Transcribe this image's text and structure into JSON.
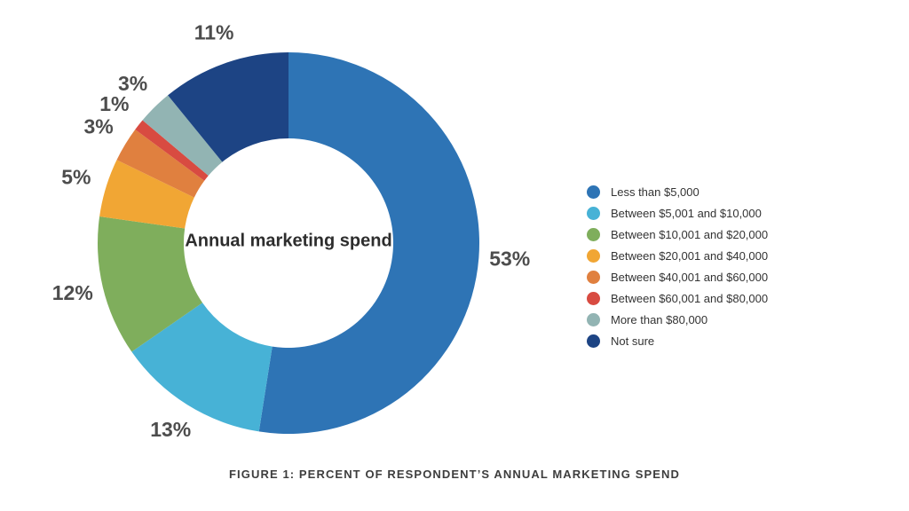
{
  "chart_data": {
    "type": "pie",
    "donut": true,
    "center_label": "Annual marketing spend",
    "caption": "FIGURE 1: PERCENT OF RESPONDENT’S ANNUAL MARKETING SPEND",
    "legend_position": "right",
    "categories": [
      "Less than $5,000",
      "Between $5,001 and $10,000",
      "Between $10,001 and $20,000",
      "Between $20,001 and $40,000",
      "Between $40,001 and $60,000",
      "Between $60,001 and $80,000",
      "More than $80,000",
      "Not sure"
    ],
    "values": [
      53,
      13,
      12,
      5,
      3,
      1,
      3,
      11
    ],
    "slices": [
      {
        "label": "Less than $5,000",
        "value": 53,
        "pct_label": "53%",
        "color": "#2e74b5"
      },
      {
        "label": "Between $5,001 and $10,000",
        "value": 13,
        "pct_label": "13%",
        "color": "#47b2d6"
      },
      {
        "label": "Between $10,001 and $20,000",
        "value": 12,
        "pct_label": "12%",
        "color": "#7fae5c"
      },
      {
        "label": "Between $20,001 and $40,000",
        "value": 5,
        "pct_label": "5%",
        "color": "#f1a634"
      },
      {
        "label": "Between $40,001 and $60,000",
        "value": 3,
        "pct_label": "3%",
        "color": "#e0803f"
      },
      {
        "label": "Between $60,001 and $80,000",
        "value": 1,
        "pct_label": "1%",
        "color": "#d84b41"
      },
      {
        "label": "More than $80,000",
        "value": 3,
        "pct_label": "3%",
        "color": "#92b4b3"
      },
      {
        "label": "Not sure",
        "value": 11,
        "pct_label": "11%",
        "color": "#1d4484"
      }
    ]
  },
  "colors": {
    "percent_label": "#4d4d4d",
    "center_label": "#2d2d2d",
    "legend_text": "#333333",
    "caption_text": "#3d3d3d",
    "background": "#ffffff"
  }
}
